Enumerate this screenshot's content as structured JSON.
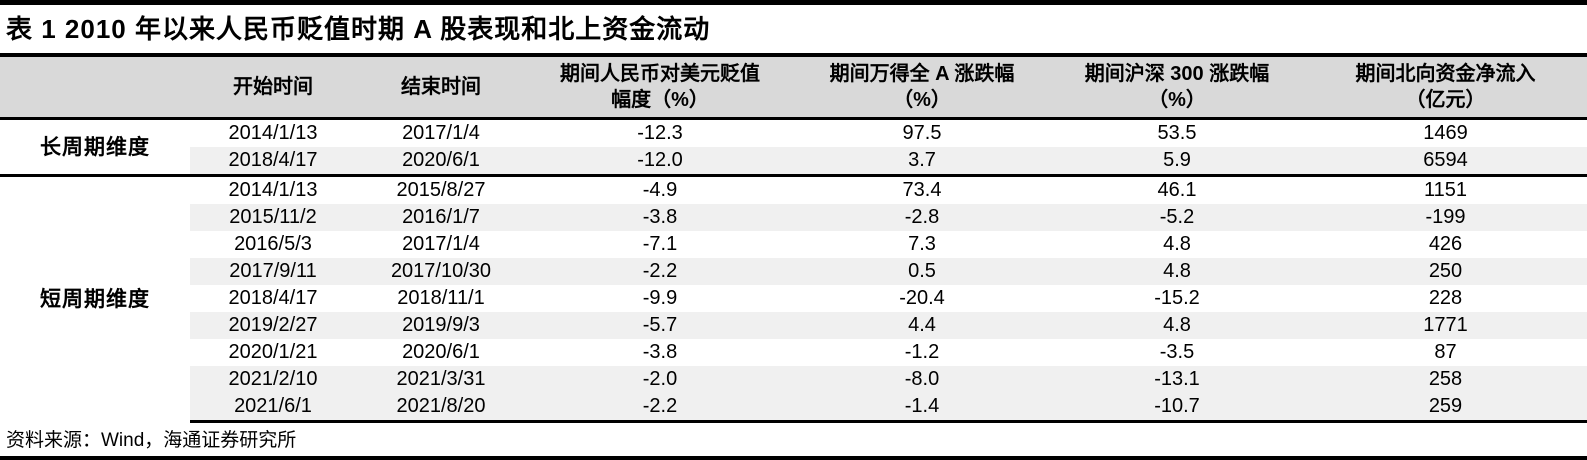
{
  "title": "表 1 2010 年以来人民币贬值时期 A 股表现和北上资金流动",
  "table": {
    "columns": [
      {
        "lines": [
          "开始时间",
          ""
        ]
      },
      {
        "lines": [
          "结束时间",
          ""
        ]
      },
      {
        "lines": [
          "期间人民币对美元贬值",
          "幅度（%）"
        ]
      },
      {
        "lines": [
          "期间万得全 A 涨跌幅",
          "（%）"
        ]
      },
      {
        "lines": [
          "期间沪深 300 涨跌幅",
          "（%）"
        ]
      },
      {
        "lines": [
          "期间北向资金净流入",
          "（亿元）"
        ]
      }
    ],
    "groups": [
      {
        "label": "长周期维度",
        "rows": [
          [
            "2014/1/13",
            "2017/1/4",
            "-12.3",
            "97.5",
            "53.5",
            "1469"
          ],
          [
            "2018/4/17",
            "2020/6/1",
            "-12.0",
            "3.7",
            "5.9",
            "6594"
          ]
        ]
      },
      {
        "label": "短周期维度",
        "rows": [
          [
            "2014/1/13",
            "2015/8/27",
            "-4.9",
            "73.4",
            "46.1",
            "1151"
          ],
          [
            "2015/11/2",
            "2016/1/7",
            "-3.8",
            "-2.8",
            "-5.2",
            "-199"
          ],
          [
            "2016/5/3",
            "2017/1/4",
            "-7.1",
            "7.3",
            "4.8",
            "426"
          ],
          [
            "2017/9/11",
            "2017/10/30",
            "-2.2",
            "0.5",
            "4.8",
            "250"
          ],
          [
            "2018/4/17",
            "2018/11/1",
            "-9.9",
            "-20.4",
            "-15.2",
            "228"
          ],
          [
            "2019/2/27",
            "2019/9/3",
            "-5.7",
            "4.4",
            "4.8",
            "1771"
          ],
          [
            "2020/1/21",
            "2020/6/1",
            "-3.8",
            "-1.2",
            "-3.5",
            "87"
          ],
          [
            "2021/2/10",
            "2021/3/31",
            "-2.0",
            "-8.0",
            "-13.1",
            "258"
          ],
          [
            "2021/6/1",
            "2021/8/20",
            "-2.2",
            "-1.4",
            "-10.7",
            "259"
          ]
        ]
      }
    ]
  },
  "footer": {
    "source": "资料来源：Wind，海通证券研究所"
  },
  "colors": {
    "header_bg": "#d9d9d9",
    "stripe_bg": "#f0f0f0",
    "rule": "#000000"
  }
}
